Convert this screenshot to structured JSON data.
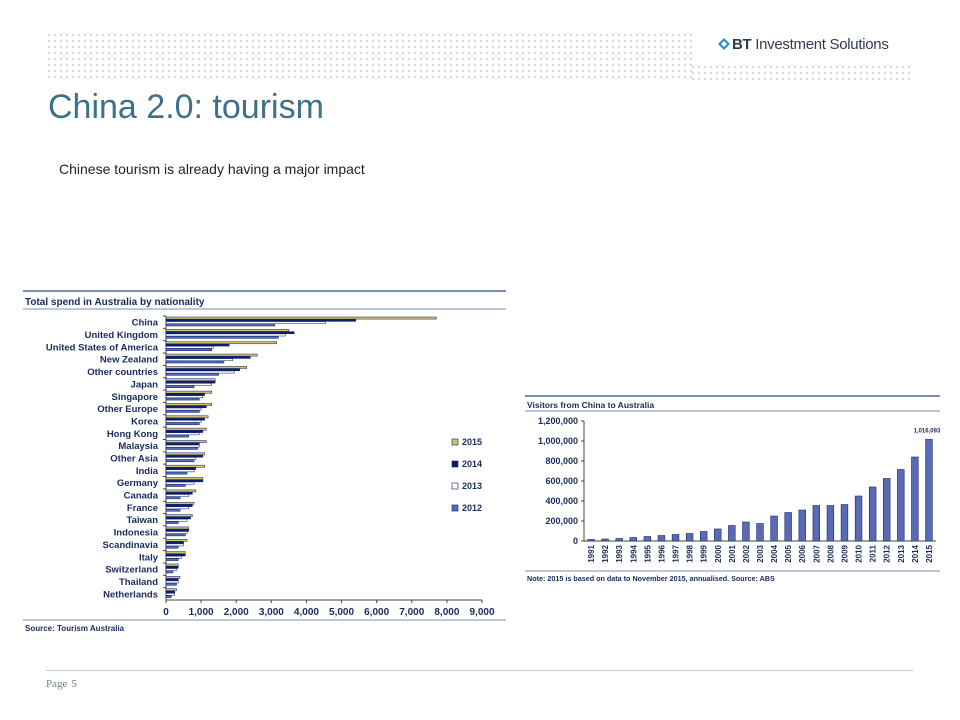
{
  "header": {
    "logo_bold": "BT",
    "logo_rest": " Investment Solutions"
  },
  "title": "China 2.0: tourism",
  "subtitle": "Chinese tourism is already having a major impact",
  "footer": {
    "page_label": "Page",
    "page_number": "5"
  },
  "colors": {
    "title": "#3e6f8c",
    "s2015": "#cfc46a",
    "s2014": "#0b1f6b",
    "s2013": "#ffffff",
    "s2012": "#5a6bb5",
    "visitor_bars": "#5a6bb5"
  },
  "chart_data": [
    {
      "type": "bar",
      "orientation": "horizontal",
      "title": "Total spend in Australia by nationality",
      "source": "Source: Tourism Australia",
      "categories": [
        "China",
        "United Kingdom",
        "United States of America",
        "New Zealand",
        "Other countries",
        "Japan",
        "Singapore",
        "Other Europe",
        "Korea",
        "Hong Kong",
        "Malaysia",
        "Other Asia",
        "India",
        "Germany",
        "Canada",
        "France",
        "Taiwan",
        "Indonesia",
        "Scandinavia",
        "Italy",
        "Switzerland",
        "Thailand",
        "Netherlands"
      ],
      "xlim": [
        0,
        9000
      ],
      "xticks": [
        "0",
        "1,000",
        "2,000",
        "3,000",
        "4,000",
        "5,000",
        "6,000",
        "7,000",
        "8,000",
        "9,000"
      ],
      "legend_position": "right",
      "series": [
        {
          "name": "2015",
          "values": [
            7700,
            3500,
            3150,
            2600,
            2300,
            1400,
            1300,
            1300,
            1200,
            1150,
            1150,
            1100,
            1100,
            1050,
            850,
            800,
            750,
            650,
            600,
            550,
            350,
            400,
            300
          ]
        },
        {
          "name": "2014",
          "values": [
            5400,
            3650,
            1800,
            2400,
            2100,
            1400,
            1100,
            1150,
            1100,
            1050,
            950,
            1050,
            850,
            1050,
            750,
            750,
            700,
            650,
            500,
            550,
            350,
            350,
            250
          ]
        },
        {
          "name": "2013",
          "values": [
            4550,
            3400,
            1350,
            1900,
            1950,
            1300,
            1050,
            1000,
            1000,
            950,
            950,
            850,
            800,
            800,
            650,
            650,
            600,
            600,
            500,
            450,
            300,
            350,
            250
          ]
        },
        {
          "name": "2012",
          "values": [
            3100,
            3200,
            1300,
            1650,
            1500,
            800,
            950,
            950,
            950,
            650,
            900,
            800,
            600,
            550,
            400,
            400,
            350,
            550,
            350,
            350,
            200,
            300,
            150
          ]
        }
      ]
    },
    {
      "type": "bar",
      "title": "Visitors from China to Australia",
      "note": "Note: 2015 is based on data to November 2015, annualised. Source: ABS",
      "categories": [
        "1991",
        "1992",
        "1993",
        "1994",
        "1995",
        "1996",
        "1997",
        "1998",
        "1999",
        "2000",
        "2001",
        "2002",
        "2003",
        "2004",
        "2005",
        "2006",
        "2007",
        "2008",
        "2009",
        "2010",
        "2011",
        "2012",
        "2013",
        "2014",
        "2015"
      ],
      "values": [
        15000,
        20000,
        25000,
        35000,
        45000,
        55000,
        65000,
        75000,
        95000,
        120000,
        155000,
        190000,
        175000,
        250000,
        285000,
        310000,
        355000,
        355000,
        365000,
        450000,
        540000,
        625000,
        715000,
        840000,
        1016093
      ],
      "ylim": [
        0,
        1200000
      ],
      "yticks": [
        "0",
        "200,000",
        "400,000",
        "600,000",
        "800,000",
        "1,000,000",
        "1,200,000"
      ],
      "data_label": "1,016,093"
    }
  ]
}
